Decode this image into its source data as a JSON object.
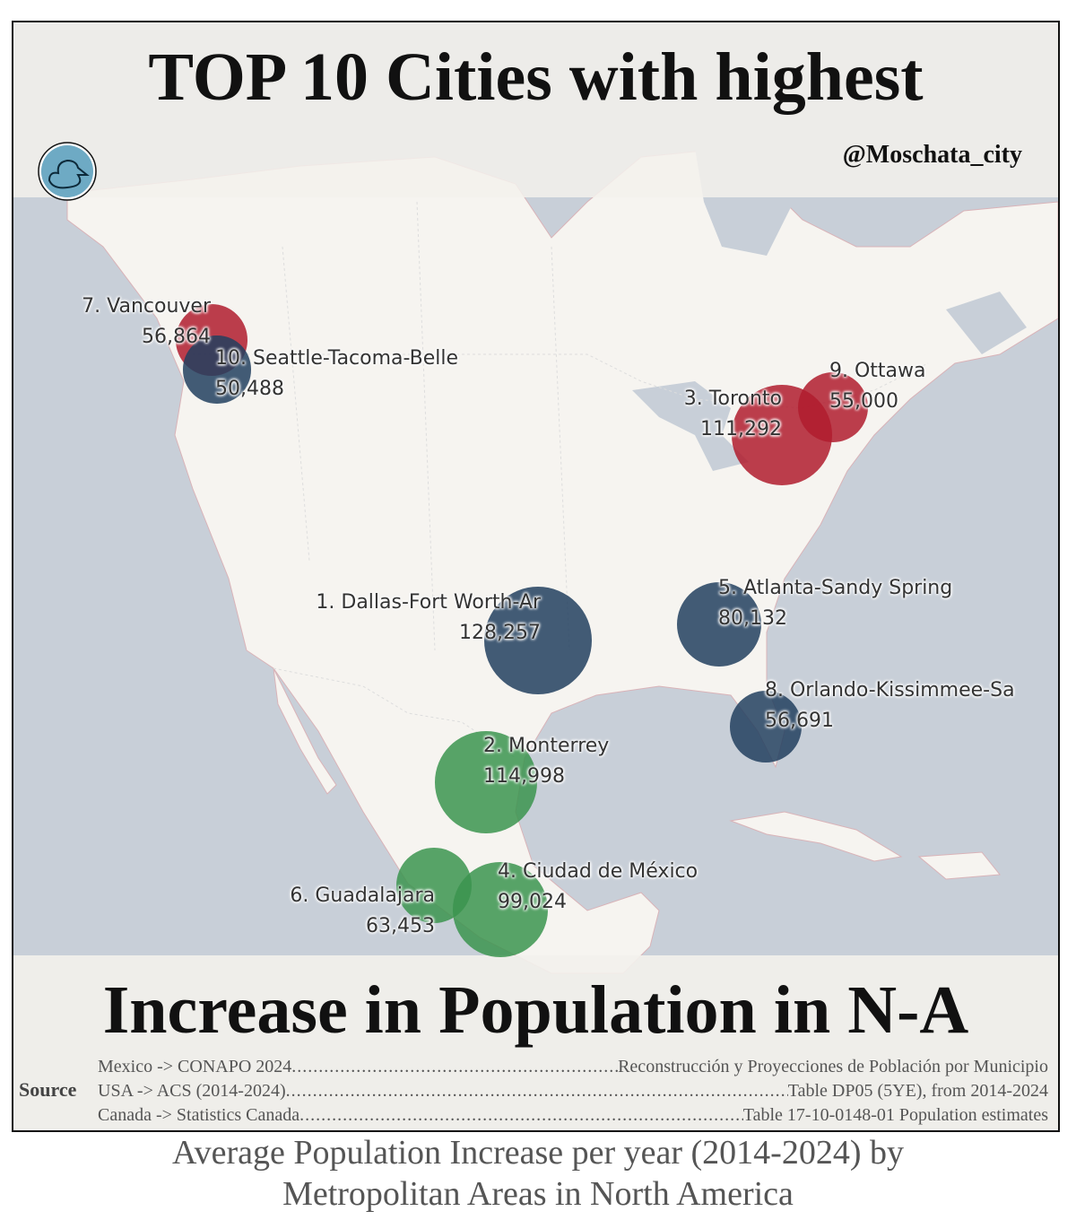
{
  "title_top": "TOP 10 Cities with highest",
  "title_bottom": "Increase in Population in N-A",
  "handle": "@Moschata_city",
  "logo": "duck-logo",
  "subtitle_line1": "Average Population Increase per year (2014-2024) by",
  "subtitle_line2": "Metropolitan Areas in North America",
  "source": {
    "label": "Source",
    "rows": [
      {
        "left": "Mexico -> CONAPO 2024",
        "right": "Reconstrucción y Proyecciones de Población por Municipio"
      },
      {
        "left": "USA -> ACS (2014-2024)",
        "right": "Table DP05 (5YE), from 2014-2024"
      },
      {
        "left": "Canada -> Statistics Canada",
        "right": "Table 17-10-0148-01  Population estimates"
      }
    ]
  },
  "colors": {
    "Canada": "#b01c2e",
    "USA": "#22405f",
    "Mexico": "#3b944f",
    "land": "#f6f4f0",
    "water": "#c8cfd8"
  },
  "cities": [
    {
      "rank": 1,
      "label": "1. Dallas-Fort Worth-Ar",
      "value": 128257,
      "value_label": "128,257",
      "country": "USA"
    },
    {
      "rank": 2,
      "label": "2. Monterrey",
      "value": 114998,
      "value_label": "114,998",
      "country": "Mexico"
    },
    {
      "rank": 3,
      "label": "3. Toronto",
      "value": 111292,
      "value_label": "111,292",
      "country": "Canada"
    },
    {
      "rank": 4,
      "label": "4. Ciudad de México",
      "value": 99024,
      "value_label": "99,024",
      "country": "Mexico"
    },
    {
      "rank": 5,
      "label": "5. Atlanta-Sandy Spring",
      "value": 80132,
      "value_label": "80,132",
      "country": "USA"
    },
    {
      "rank": 6,
      "label": "6. Guadalajara",
      "value": 63453,
      "value_label": "63,453",
      "country": "Mexico"
    },
    {
      "rank": 7,
      "label": "7. Vancouver",
      "value": 56864,
      "value_label": "56,864",
      "country": "Canada"
    },
    {
      "rank": 8,
      "label": "8. Orlando-Kissimmee-Sa",
      "value": 56691,
      "value_label": "56,691",
      "country": "USA"
    },
    {
      "rank": 9,
      "label": "9. Ottawa",
      "value": 55000,
      "value_label": "55,000",
      "country": "Canada"
    },
    {
      "rank": 10,
      "label": "10. Seattle-Tacoma-Belle",
      "value": 50488,
      "value_label": "50,488",
      "country": "USA"
    }
  ]
}
